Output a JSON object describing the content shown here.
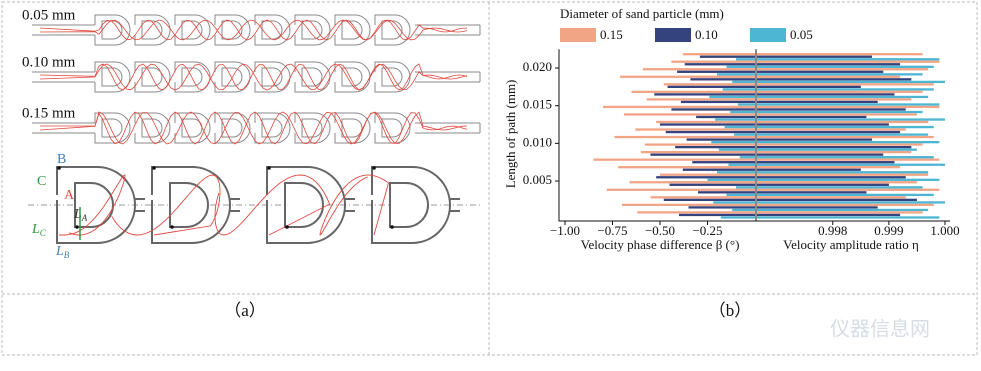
{
  "panel_a": {
    "channels": [
      "0.05 mm",
      "0.10 mm",
      "0.15 mm"
    ],
    "points": [
      "B",
      "C",
      "A"
    ],
    "lengths": [
      {
        "symbol": "L",
        "sub": "A"
      },
      {
        "symbol": "L",
        "sub": "C"
      },
      {
        "symbol": "L",
        "sub": "B"
      }
    ]
  },
  "captions": [
    "（a）",
    "（b）"
  ],
  "watermark": "仪器信息网",
  "chart_data": [
    {
      "type": "hbar",
      "legend_title": "Diameter of sand particle (mm)",
      "ylabel": "Length of path (mm)",
      "xlabel": "Velocity phase difference β (°)",
      "y": [
        0.0005,
        0.0015,
        0.0025,
        0.0035,
        0.0045,
        0.0055,
        0.0065,
        0.0075,
        0.0085,
        0.0095,
        0.0105,
        0.0115,
        0.0125,
        0.0135,
        0.0145,
        0.0155,
        0.0165,
        0.0175,
        0.0185,
        0.0195,
        0.0205,
        0.0215
      ],
      "ylim": [
        0,
        0.0225
      ],
      "yticks": [
        0.005,
        {
          "value": 0.01,
          "label": "0.010"
        },
        0.015,
        {
          "value": 0.02,
          "label": "0.020"
        }
      ],
      "xlim": [
        -1,
        0
      ],
      "xticks": [
        {
          "value": -1,
          "label": "−1.00"
        },
        {
          "value": -0.75,
          "label": "−0.75"
        },
        {
          "value": -0.5,
          "label": "−0.50"
        },
        {
          "value": -0.25,
          "label": "−0.25"
        }
      ],
      "series": [
        {
          "name": "0.15",
          "color": "#f2a585",
          "values": [
            -0.62,
            -0.7,
            -0.55,
            -0.78,
            -0.66,
            -0.5,
            -0.72,
            -0.85,
            -0.6,
            -0.58,
            -0.74,
            -0.63,
            -0.52,
            -0.69,
            -0.8,
            -0.57,
            -0.65,
            -0.48,
            -0.71,
            -0.59,
            -0.44,
            -0.38
          ]
        },
        {
          "name": "0.10",
          "color": "#34427e",
          "values": [
            -0.4,
            -0.35,
            -0.48,
            -0.3,
            -0.45,
            -0.52,
            -0.38,
            -0.33,
            -0.55,
            -0.42,
            -0.36,
            -0.47,
            -0.5,
            -0.31,
            -0.44,
            -0.39,
            -0.53,
            -0.46,
            -0.34,
            -0.41,
            -0.37,
            -0.29
          ]
        },
        {
          "name": "0.05",
          "color": "#4db6d3",
          "values": [
            -0.18,
            -0.12,
            -0.22,
            -0.15,
            -0.1,
            -0.25,
            -0.2,
            -0.14,
            -0.08,
            -0.19,
            -0.23,
            -0.11,
            -0.16,
            -0.21,
            -0.13,
            -0.09,
            -0.24,
            -0.17,
            -0.12,
            -0.2,
            -0.15,
            -0.1
          ]
        }
      ]
    },
    {
      "type": "hbar",
      "xlabel": "Velocity amplitude ratio η",
      "y": [
        0.0005,
        0.0015,
        0.0025,
        0.0035,
        0.0045,
        0.0055,
        0.0065,
        0.0075,
        0.0085,
        0.0095,
        0.0105,
        0.0115,
        0.0125,
        0.0135,
        0.0145,
        0.0155,
        0.0165,
        0.0175,
        0.0185,
        0.0195,
        0.0205,
        0.0215
      ],
      "ylim": [
        0,
        0.0225
      ],
      "xlim": [
        0.99665,
        1
      ],
      "xticks": [
        0.998,
        0.999,
        {
          "value": 1,
          "label": "1.000"
        }
      ],
      "series": [
        {
          "color": "#f2a585",
          "values": [
            0.9996,
            0.9998,
            0.9993,
            0.9999,
            0.9995,
            0.9997,
            0.9992,
            0.9999,
            0.9994,
            0.9996,
            0.9998,
            0.9993,
            0.9997,
            0.9995,
            0.9999,
            0.9994,
            0.9996,
            0.9998,
            0.9992,
            0.9997,
            0.9999,
            0.9996
          ]
        },
        {
          "color": "#34427e",
          "values": [
            0.9992,
            0.9988,
            0.9995,
            0.9986,
            0.999,
            0.9993,
            0.9985,
            0.9991,
            0.9989,
            0.9994,
            0.9987,
            0.9992,
            0.999,
            0.9986,
            0.9993,
            0.9988,
            0.9991,
            0.9985,
            0.9994,
            0.9989,
            0.9992,
            0.9987
          ]
        },
        {
          "color": "#4db6d3",
          "values": [
            0.9999,
            0.9997,
            1,
            0.9998,
            0.9996,
            0.9999,
            0.9997,
            1,
            0.9998,
            0.9995,
            0.9999,
            0.9997,
            0.9998,
            1,
            0.9996,
            0.9999,
            0.9997,
            0.9998,
            1,
            0.9996,
            0.9998,
            0.9999
          ]
        }
      ]
    }
  ]
}
